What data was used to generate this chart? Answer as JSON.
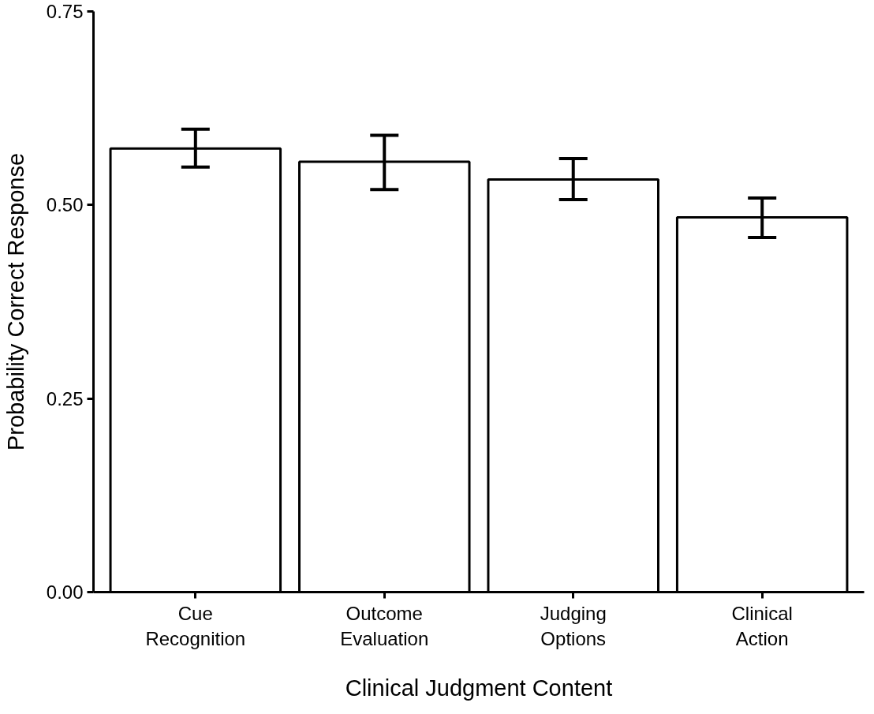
{
  "chart_data": {
    "type": "bar",
    "xlabel": "Clinical Judgment Content",
    "ylabel": "Probability Correct Response",
    "categories": [
      "Cue Recognition",
      "Outcome Evaluation",
      "Judging Options",
      "Clinical Action"
    ],
    "values": [
      0.573,
      0.556,
      0.533,
      0.484
    ],
    "errors": [
      [
        0.549,
        0.598
      ],
      [
        0.52,
        0.59
      ],
      [
        0.507,
        0.56
      ],
      [
        0.458,
        0.509
      ]
    ],
    "color": "#ffffff",
    "ylim": [
      0,
      0.75
    ],
    "yticks": [
      {
        "value": 0,
        "label": "0.00"
      },
      {
        "value": 0.25,
        "label": "0.25"
      },
      {
        "value": 0.5,
        "label": "0.50"
      },
      {
        "value": 0.75,
        "label": "0.75"
      }
    ],
    "grid": false
  }
}
